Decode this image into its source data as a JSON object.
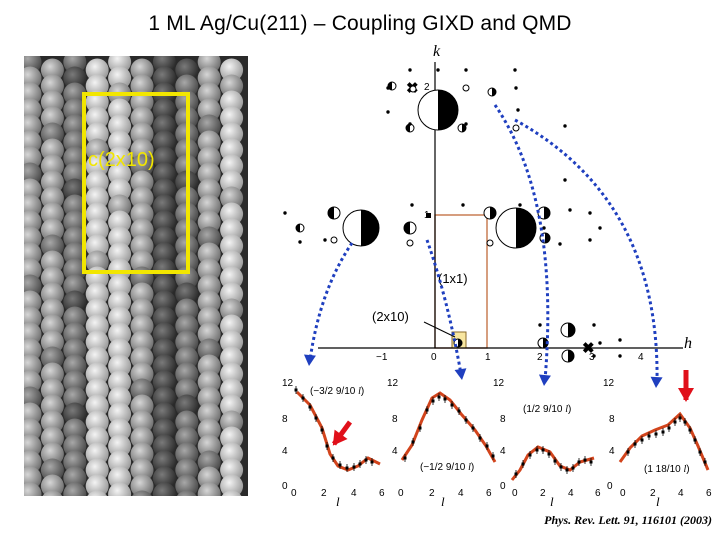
{
  "title": "1 ML Ag/Cu(211) – Coupling GIXD and QMD",
  "citation": "Phys. Rev. Lett. 91, 116101 (2003)",
  "surface_image": {
    "cell_label": "c(2x10)",
    "colors": {
      "frame": "#f2e600",
      "label": "#f2e600"
    }
  },
  "reciprocal_map": {
    "k_axis_label": "k",
    "h_axis_label": "h",
    "h_ticks": [
      "−1",
      "0",
      "1",
      "2",
      "3",
      "4"
    ],
    "k_ticks": [
      "1",
      "2"
    ],
    "cell_1x1_label": "(1x1)",
    "cell_2x10_label": "(2x10)",
    "colors": {
      "cell_1x1": "#c0693a",
      "cell_2x10_fill": "#f8e6a0",
      "arrows": "#1f3fbf"
    }
  },
  "rod_panels": {
    "x_label": "l",
    "x_ticks": [
      "0",
      "2",
      "4",
      "6"
    ],
    "y_ticks": [
      "0",
      "4",
      "8",
      "12"
    ],
    "colors": {
      "model": "#d2441c",
      "data": "#000000",
      "marker": "#e0101a"
    },
    "panels": [
      {
        "label_prefix": "(−3/2 9/10 ",
        "label_var": "l",
        "label_suffix": ")"
      },
      {
        "label_prefix": "(−1/2 9/10 ",
        "label_var": "l",
        "label_suffix": ")"
      },
      {
        "label_prefix": "(1/2 9/10 ",
        "label_var": "l",
        "label_suffix": ")"
      },
      {
        "label_prefix": "(1 18/10 ",
        "label_var": "l",
        "label_suffix": ")"
      }
    ]
  }
}
